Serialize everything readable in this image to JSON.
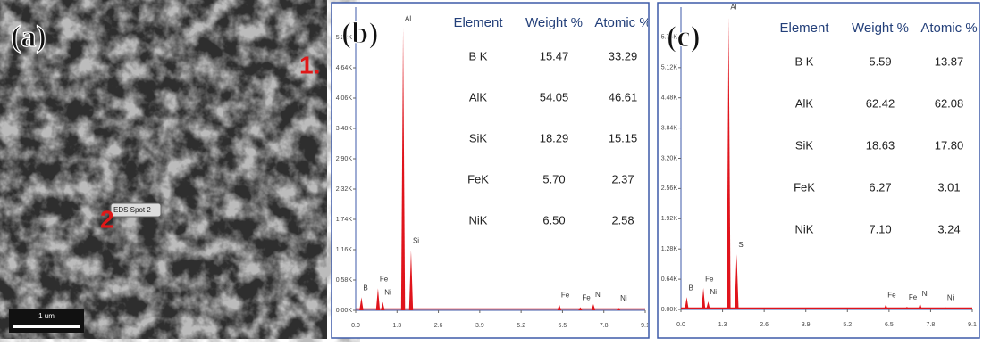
{
  "image_panel": {
    "label": "(a)",
    "scale_bar": "1 um",
    "spot_tag": "EDS Spot 2",
    "markers": [
      "1.",
      "2"
    ]
  },
  "chart_data": [
    {
      "type": "spectrum",
      "label": "(b)",
      "color": "#e0141c",
      "categories": [
        "B",
        "Fe",
        "Ni",
        "Al",
        "Si",
        "Fe",
        "Fe",
        "Ni",
        "Ni"
      ],
      "x": [
        0.18,
        0.7,
        0.85,
        1.49,
        1.74,
        6.4,
        7.06,
        7.47,
        8.26
      ],
      "values": [
        250,
        420,
        160,
        5400,
        1150,
        110,
        60,
        120,
        50
      ],
      "xlim": [
        0,
        9.1
      ],
      "xticks": [
        {
          "value": 0,
          "label": "0.0"
        },
        1.3,
        2.6,
        3.9,
        5.2,
        6.5,
        7.8,
        9.1
      ],
      "ylim": [
        0,
        5800
      ],
      "yticks": [
        {
          "value": 0,
          "label": "0.00K"
        },
        {
          "value": 580,
          "label": "0.58K"
        },
        {
          "value": 1160,
          "label": "1.16K"
        },
        {
          "value": 1740,
          "label": "1.74K"
        },
        {
          "value": 2320,
          "label": "2.32K"
        },
        {
          "value": 2900,
          "label": "2.90K"
        },
        {
          "value": 3480,
          "label": "3.48K"
        },
        {
          "value": 4060,
          "label": "4.06K"
        },
        {
          "value": 4640,
          "label": "4.64K"
        },
        {
          "value": 5220,
          "label": "5.22K"
        }
      ],
      "table": {
        "header": [
          "Element",
          "Weight %",
          "Atomic %"
        ],
        "rows": [
          [
            "B K",
            "15.47",
            "33.29"
          ],
          [
            "AlK",
            "54.05",
            "46.61"
          ],
          [
            "SiK",
            "18.29",
            "15.15"
          ],
          [
            "FeK",
            "5.70",
            "2.37"
          ],
          [
            "NiK",
            "6.50",
            "2.58"
          ]
        ]
      }
    },
    {
      "type": "spectrum",
      "label": "(c)",
      "color": "#e0141c",
      "categories": [
        "B",
        "Fe",
        "Ni",
        "Al",
        "Si",
        "Fe",
        "Fe",
        "Ni",
        "Ni"
      ],
      "x": [
        0.18,
        0.7,
        0.85,
        1.49,
        1.74,
        6.4,
        7.06,
        7.47,
        8.26
      ],
      "values": [
        260,
        450,
        170,
        6200,
        1170,
        110,
        60,
        130,
        50
      ],
      "xlim": [
        0,
        9.1
      ],
      "xticks": [
        {
          "value": 0,
          "label": "0.0"
        },
        1.3,
        2.6,
        3.9,
        5.2,
        6.5,
        7.8,
        9.1
      ],
      "ylim": [
        0,
        6400
      ],
      "yticks": [
        {
          "value": 0,
          "label": "0.00K"
        },
        {
          "value": 640,
          "label": "0.64K"
        },
        {
          "value": 1280,
          "label": "1.28K"
        },
        {
          "value": 1920,
          "label": "1.92K"
        },
        {
          "value": 2560,
          "label": "2.56K"
        },
        {
          "value": 3200,
          "label": "3.20K"
        },
        {
          "value": 3840,
          "label": "3.84K"
        },
        {
          "value": 4480,
          "label": "4.48K"
        },
        {
          "value": 5120,
          "label": "5.12K"
        },
        {
          "value": 5760,
          "label": "5.76K"
        }
      ],
      "table": {
        "header": [
          "Element",
          "Weight %",
          "Atomic %"
        ],
        "rows": [
          [
            "B K",
            "5.59",
            "13.87"
          ],
          [
            "AlK",
            "62.42",
            "62.08"
          ],
          [
            "SiK",
            "18.63",
            "17.80"
          ],
          [
            "FeK",
            "6.27",
            "3.01"
          ],
          [
            "NiK",
            "7.10",
            "3.24"
          ]
        ]
      }
    }
  ]
}
